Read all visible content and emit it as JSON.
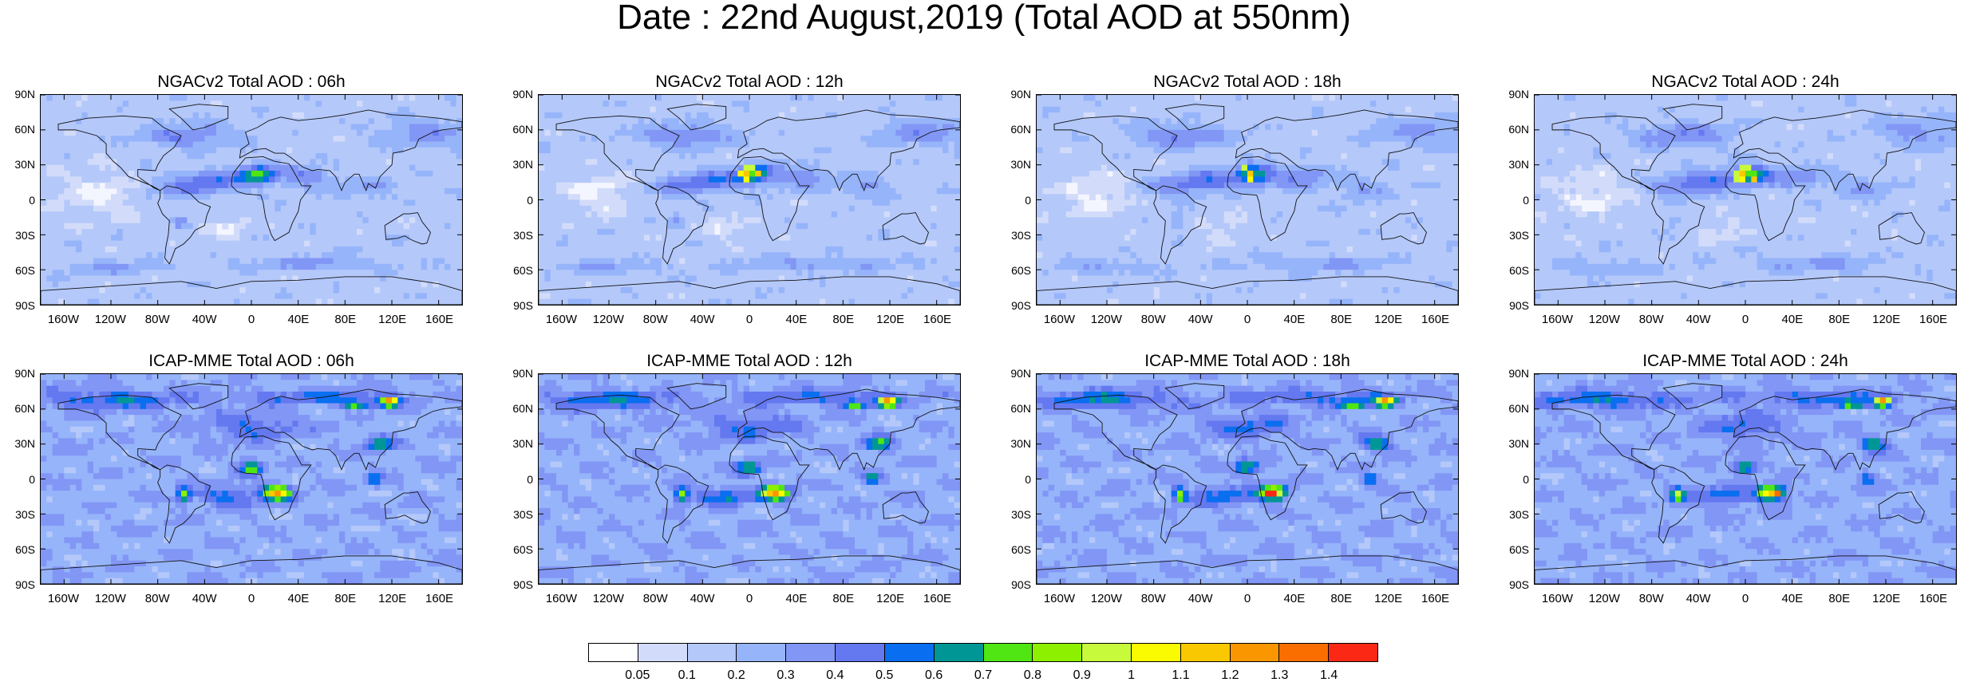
{
  "title": "Date : 22nd August,2019 (Total AOD at 550nm)",
  "axes": {
    "lat_labels": [
      "90N",
      "60N",
      "30N",
      "0",
      "30S",
      "60S",
      "90S"
    ],
    "lon_labels": [
      "160W",
      "120W",
      "80W",
      "40W",
      "0",
      "40E",
      "80E",
      "120E",
      "160E"
    ]
  },
  "panels": [
    {
      "title": "NGACv2 Total AOD : 06h",
      "model": "NGACv2"
    },
    {
      "title": "NGACv2 Total AOD : 12h",
      "model": "NGACv2"
    },
    {
      "title": "NGACv2 Total AOD : 18h",
      "model": "NGACv2"
    },
    {
      "title": "NGACv2 Total AOD : 24h",
      "model": "NGACv2"
    },
    {
      "title": "ICAP-MME Total AOD : 06h",
      "model": "ICAP-MME"
    },
    {
      "title": "ICAP-MME Total AOD : 12h",
      "model": "ICAP-MME"
    },
    {
      "title": "ICAP-MME Total AOD : 18h",
      "model": "ICAP-MME"
    },
    {
      "title": "ICAP-MME Total AOD : 24h",
      "model": "ICAP-MME"
    }
  ],
  "colorbar": {
    "colors": [
      "#ffffff",
      "#d2dcfa",
      "#b4c8fa",
      "#96b4fa",
      "#8296f5",
      "#6478f0",
      "#0a6ef0",
      "#009696",
      "#50e614",
      "#8cf000",
      "#c8fa3c",
      "#fafa00",
      "#fac800",
      "#fa9600",
      "#fa6e00",
      "#fa2814"
    ],
    "labels": [
      "0.05",
      "0.1",
      "0.2",
      "0.3",
      "0.4",
      "0.5",
      "0.6",
      "0.7",
      "0.8",
      "0.9",
      "1",
      "1.1",
      "1.2",
      "1.3",
      "1.4"
    ]
  }
}
